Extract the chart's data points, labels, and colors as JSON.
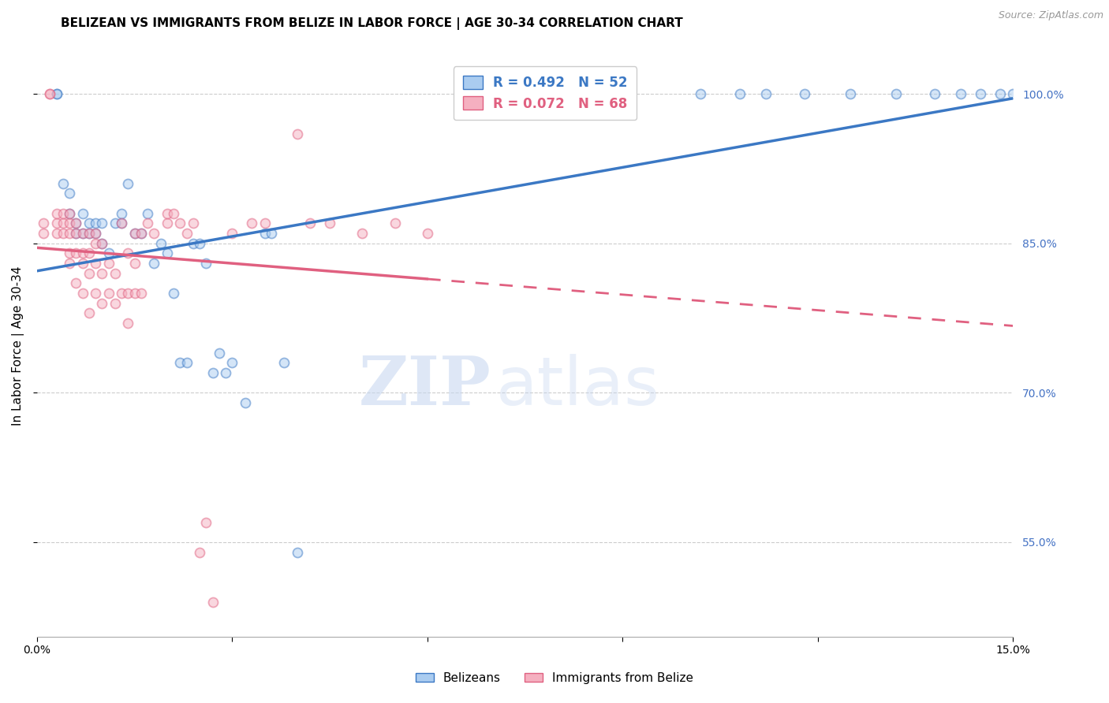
{
  "title": "BELIZEAN VS IMMIGRANTS FROM BELIZE IN LABOR FORCE | AGE 30-34 CORRELATION CHART",
  "source": "Source: ZipAtlas.com",
  "ylabel": "In Labor Force | Age 30-34",
  "xlim": [
    0.0,
    0.15
  ],
  "ylim": [
    0.455,
    1.04
  ],
  "watermark_zip": "ZIP",
  "watermark_atlas": "atlas",
  "legend_entries": [
    {
      "label": "R = 0.492   N = 52",
      "color": "#3b78c4"
    },
    {
      "label": "R = 0.072   N = 68",
      "color": "#e06080"
    }
  ],
  "legend_labels_bottom": [
    "Belizeans",
    "Immigrants from Belize"
  ],
  "blue_scatter_x": [
    0.003,
    0.003,
    0.004,
    0.005,
    0.005,
    0.006,
    0.006,
    0.007,
    0.007,
    0.008,
    0.008,
    0.009,
    0.009,
    0.01,
    0.01,
    0.011,
    0.012,
    0.013,
    0.013,
    0.014,
    0.015,
    0.016,
    0.017,
    0.018,
    0.019,
    0.02,
    0.021,
    0.022,
    0.023,
    0.024,
    0.025,
    0.026,
    0.027,
    0.028,
    0.029,
    0.03,
    0.032,
    0.035,
    0.036,
    0.038,
    0.04,
    0.102,
    0.108,
    0.112,
    0.118,
    0.125,
    0.132,
    0.138,
    0.142,
    0.145,
    0.148,
    0.15
  ],
  "blue_scatter_y": [
    1.0,
    1.0,
    0.91,
    0.88,
    0.9,
    0.86,
    0.87,
    0.86,
    0.88,
    0.86,
    0.87,
    0.86,
    0.87,
    0.85,
    0.87,
    0.84,
    0.87,
    0.87,
    0.88,
    0.91,
    0.86,
    0.86,
    0.88,
    0.83,
    0.85,
    0.84,
    0.8,
    0.73,
    0.73,
    0.85,
    0.85,
    0.83,
    0.72,
    0.74,
    0.72,
    0.73,
    0.69,
    0.86,
    0.86,
    0.73,
    0.54,
    1.0,
    1.0,
    1.0,
    1.0,
    1.0,
    1.0,
    1.0,
    1.0,
    1.0,
    1.0,
    1.0
  ],
  "pink_scatter_x": [
    0.001,
    0.001,
    0.002,
    0.002,
    0.003,
    0.003,
    0.003,
    0.004,
    0.004,
    0.004,
    0.005,
    0.005,
    0.005,
    0.005,
    0.005,
    0.006,
    0.006,
    0.006,
    0.006,
    0.007,
    0.007,
    0.007,
    0.007,
    0.008,
    0.008,
    0.008,
    0.008,
    0.009,
    0.009,
    0.009,
    0.009,
    0.01,
    0.01,
    0.01,
    0.011,
    0.011,
    0.012,
    0.012,
    0.013,
    0.013,
    0.014,
    0.014,
    0.014,
    0.015,
    0.015,
    0.015,
    0.016,
    0.016,
    0.017,
    0.018,
    0.02,
    0.02,
    0.021,
    0.022,
    0.023,
    0.024,
    0.025,
    0.026,
    0.027,
    0.03,
    0.033,
    0.035,
    0.04,
    0.042,
    0.045,
    0.05,
    0.055,
    0.06
  ],
  "pink_scatter_y": [
    0.86,
    0.87,
    1.0,
    1.0,
    0.86,
    0.87,
    0.88,
    0.86,
    0.87,
    0.88,
    0.83,
    0.84,
    0.86,
    0.87,
    0.88,
    0.81,
    0.84,
    0.86,
    0.87,
    0.8,
    0.83,
    0.84,
    0.86,
    0.78,
    0.82,
    0.84,
    0.86,
    0.8,
    0.83,
    0.85,
    0.86,
    0.79,
    0.82,
    0.85,
    0.8,
    0.83,
    0.79,
    0.82,
    0.87,
    0.8,
    0.77,
    0.8,
    0.84,
    0.8,
    0.83,
    0.86,
    0.8,
    0.86,
    0.87,
    0.86,
    0.87,
    0.88,
    0.88,
    0.87,
    0.86,
    0.87,
    0.54,
    0.57,
    0.49,
    0.86,
    0.87,
    0.87,
    0.96,
    0.87,
    0.87,
    0.86,
    0.87,
    0.86
  ],
  "blue_line_color": "#3b78c4",
  "pink_line_color": "#e06080",
  "blue_scatter_face": "#aaccf0",
  "pink_scatter_face": "#f5b0c0",
  "background_color": "#ffffff",
  "grid_color": "#cccccc",
  "title_fontsize": 11,
  "axis_label_fontsize": 11,
  "tick_fontsize": 10,
  "scatter_size": 75,
  "scatter_alpha": 0.5,
  "right_tick_color": "#4472c4"
}
